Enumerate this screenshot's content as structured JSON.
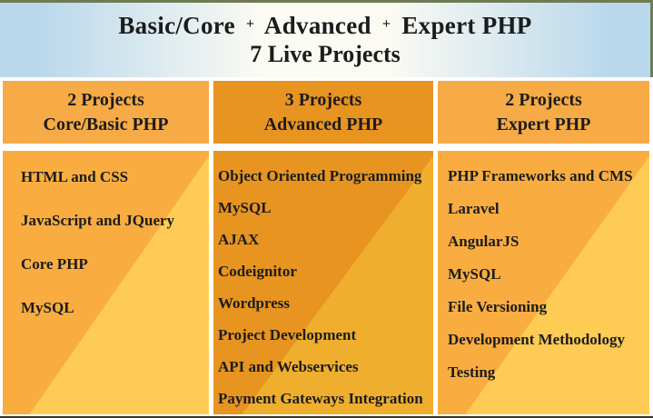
{
  "header": {
    "title_segments": [
      {
        "text": "Basic/Core"
      },
      {
        "text": "+"
      },
      {
        "text": "Advanced"
      },
      {
        "text": "+"
      },
      {
        "text": "Expert PHP"
      }
    ],
    "subtitle": "7 Live Projects"
  },
  "columns": [
    {
      "header_line1": "2 Projects",
      "header_line2": "Core/Basic PHP",
      "items": [
        "HTML and CSS",
        "JavaScript and JQuery",
        "Core PHP",
        "MySQL"
      ]
    },
    {
      "header_line1": "3 Projects",
      "header_line2": "Advanced PHP",
      "items": [
        "Object Oriented Programming",
        "MySQL",
        "AJAX",
        "Codeignitor",
        "Wordpress",
        "Project Development",
        "API and Webservices",
        "Payment Gateways Integration"
      ]
    },
    {
      "header_line1": "2 Projects",
      "header_line2": "Expert PHP",
      "items": [
        "PHP Frameworks and CMS",
        "Laravel",
        "AngularJS",
        "MySQL",
        "File Versioning",
        "Development Methodology",
        "Testing"
      ]
    }
  ],
  "colors": {
    "text": "#1c1c1c",
    "olive": "#6e7b52",
    "banner_edge": "#b9d8ec",
    "banner_center": "#fbfaf3",
    "orange_header": "#f7ab46",
    "orange_body": "#f9ad41",
    "orange_body_light": "#fecb55",
    "amber_header": "#e79421",
    "amber_body_light": "#f0ae2f",
    "bottom_edge": "#33332c"
  }
}
